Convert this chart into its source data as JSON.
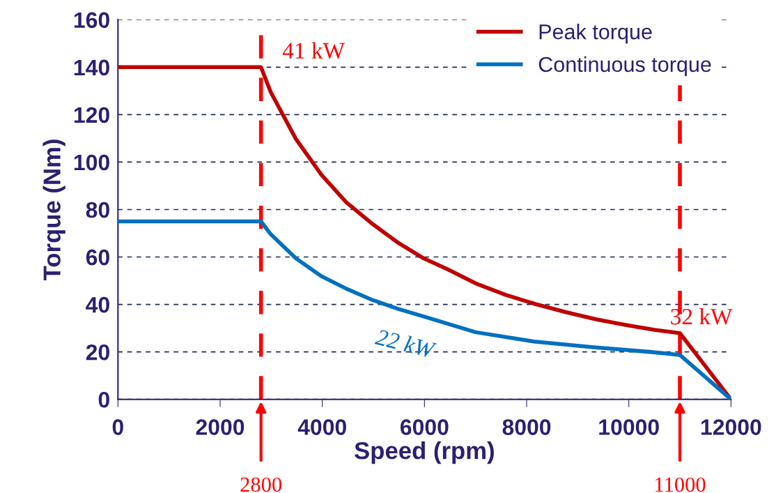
{
  "chart_data": {
    "type": "line",
    "xlabel": "Speed (rpm)",
    "ylabel": "Torque (Nm)",
    "xlim": [
      0,
      12000
    ],
    "xticks": [
      0,
      2000,
      4000,
      6000,
      8000,
      10000,
      12000
    ],
    "ylim": [
      0,
      160
    ],
    "yticks": [
      0,
      20,
      40,
      60,
      80,
      100,
      120,
      140,
      160
    ],
    "grid": "y",
    "legend": "top right",
    "marker": "none",
    "line_style": "solid",
    "series": [
      {
        "name": "Peak torque",
        "color": "#c00000",
        "x": [
          0,
          2800,
          2990,
          3484,
          3980,
          4473,
          4990,
          5490,
          5986,
          6455,
          7000,
          7590,
          8182,
          8773,
          9364,
          9955,
          10500,
          11000,
          12000
        ],
        "values": [
          140,
          140,
          129.5,
          109.7,
          94.7,
          83,
          73.8,
          65.9,
          59.4,
          54.8,
          48.9,
          44,
          40.1,
          36.7,
          33.7,
          31.3,
          29.3,
          27.9,
          0
        ]
      },
      {
        "name": "Continuous torque",
        "color": "#0070c0",
        "x": [
          0,
          2800,
          2990,
          3484,
          3980,
          4473,
          4990,
          5490,
          5986,
          7000,
          8136,
          9273,
          10409,
          11000,
          12000
        ],
        "values": [
          75,
          75,
          69.6,
          59.4,
          51.9,
          46.6,
          41.8,
          38.1,
          34.9,
          28.3,
          24.4,
          22,
          20,
          18.7,
          0
        ]
      }
    ],
    "ref_lines": [
      {
        "axis": "x",
        "value": 2800,
        "label": "2800",
        "color": "#ff0000",
        "line_style": "dashed"
      },
      {
        "axis": "x",
        "value": 11000,
        "label": "11000",
        "color": "#ff0000",
        "line_style": "dashed"
      }
    ],
    "annotations": [
      {
        "text": "41 kW",
        "x": 2800,
        "y": 140
      },
      {
        "text": "32 kW",
        "x": 11000,
        "y": 27.9
      },
      {
        "text": "22 kW",
        "x": 5986,
        "y": 34.9
      }
    ]
  }
}
